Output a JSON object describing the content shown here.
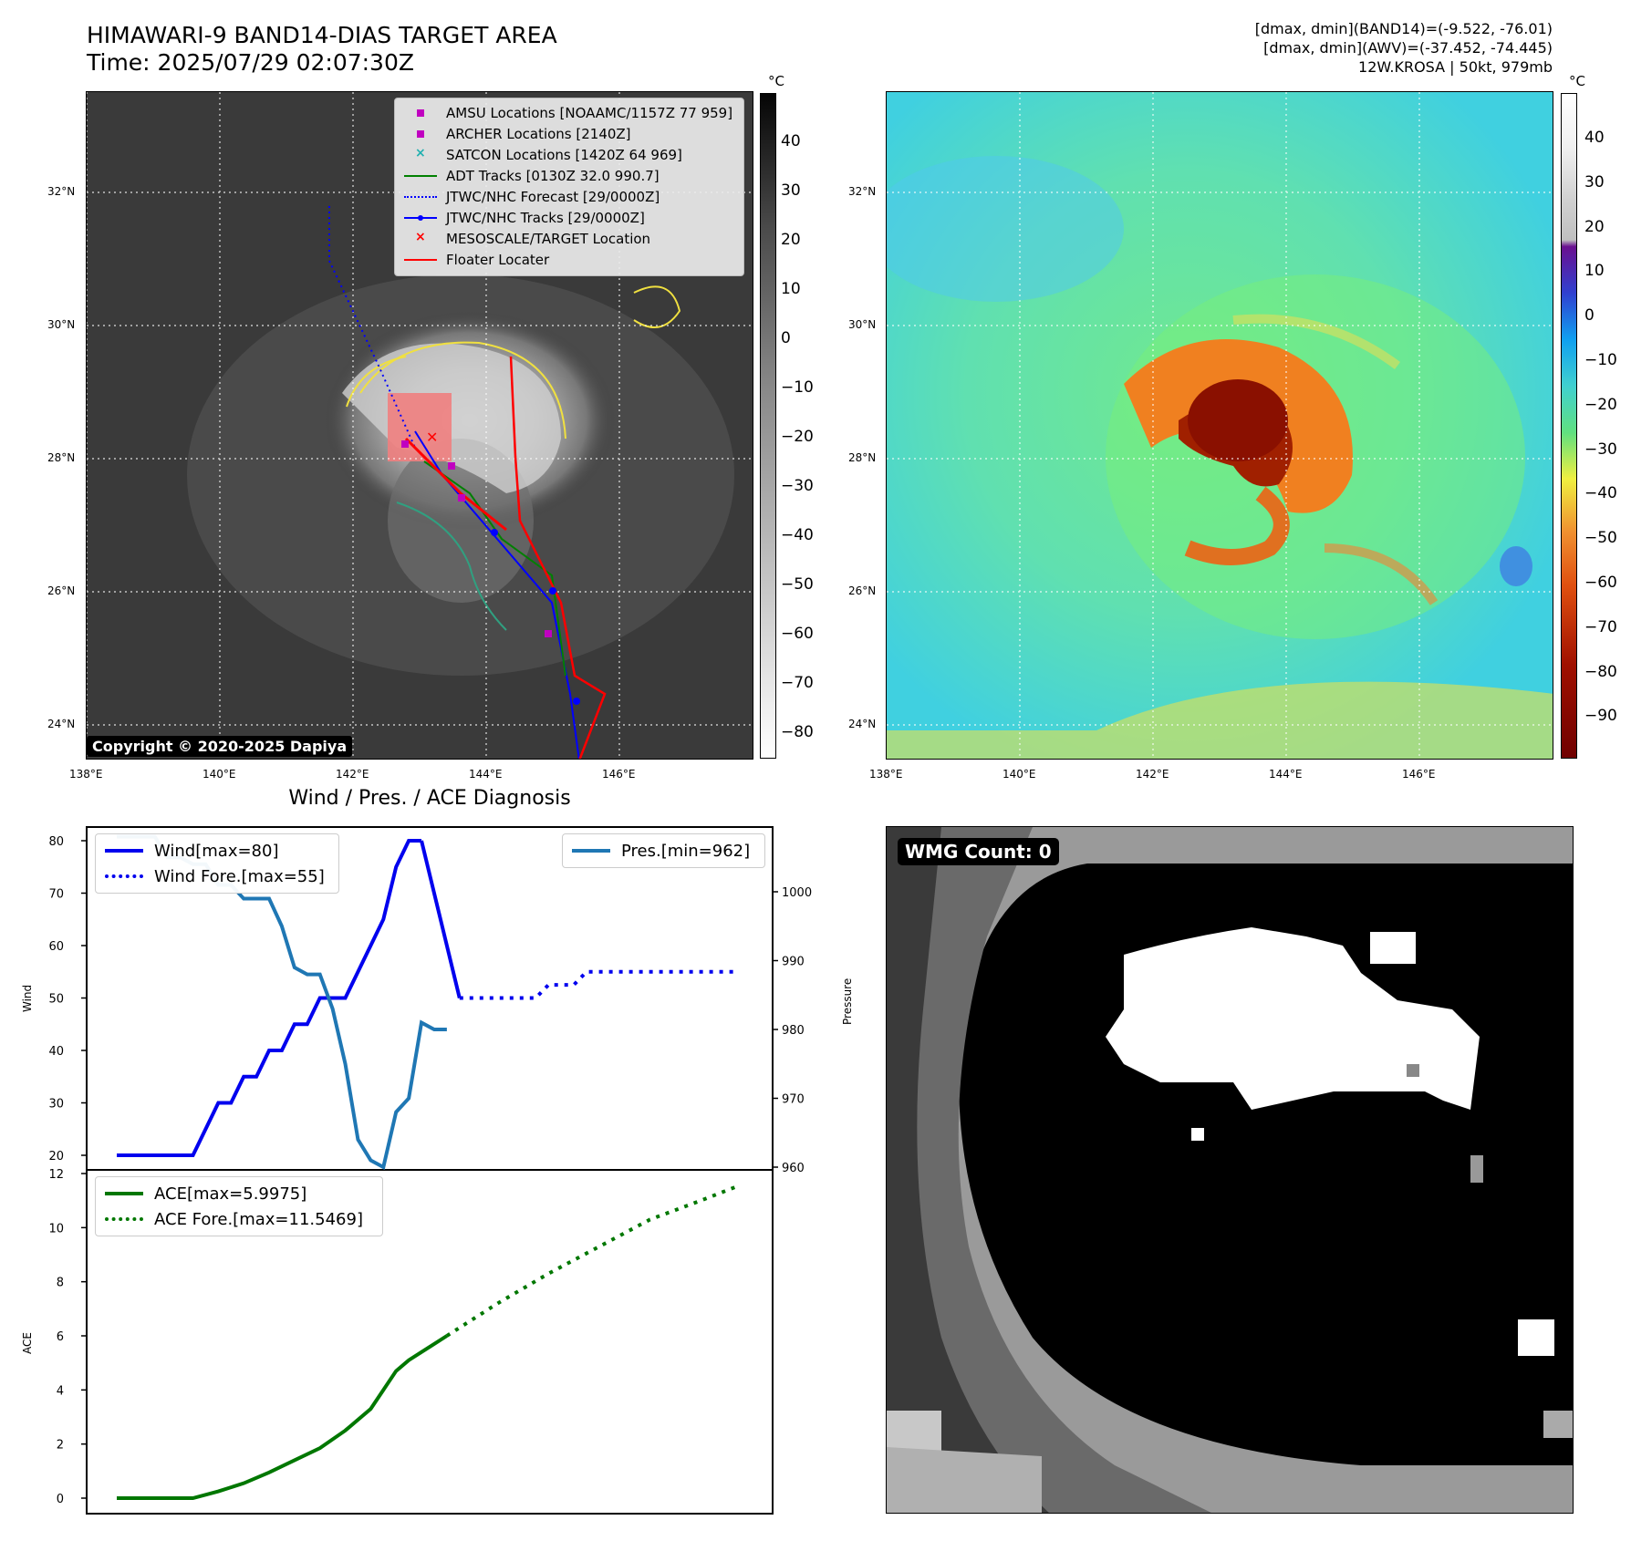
{
  "title": {
    "line1": "HIMAWARI-9 BAND14-DIAS TARGET AREA",
    "line2": "Time: 2025/07/29 02:07:30Z",
    "right1": "[dmax, dmin](BAND14)=(-9.522, -76.01)",
    "right2": "[dmax, dmin](AWV)=(-37.452, -74.445)",
    "right3": "12W.KROSA | 50kt, 979mb"
  },
  "map": {
    "lat_labels": [
      "32°N",
      "30°N",
      "28°N",
      "26°N",
      "24°N"
    ],
    "lon_labels": [
      "138°E",
      "140°E",
      "142°E",
      "144°E",
      "146°E"
    ],
    "copyright": "Copyright © 2020-2025 Dapiya",
    "cbar_unit": "°C",
    "cbar_left_ticks": [
      "40",
      "30",
      "20",
      "10",
      "0",
      "−10",
      "−20",
      "−30",
      "−40",
      "−50",
      "−60",
      "−70",
      "−80"
    ],
    "cbar_right_ticks": [
      "40",
      "30",
      "20",
      "10",
      "0",
      "−10",
      "−20",
      "−30",
      "−40",
      "−50",
      "−60",
      "−70",
      "−80",
      "−90"
    ],
    "legend": [
      {
        "label": "AMSU Locations [NOAAMC/1157Z 77 959]",
        "icon": "square-marker",
        "color": "#c000c0"
      },
      {
        "label": "ARCHER Locations [2140Z]",
        "icon": "square-marker",
        "color": "#c000c0"
      },
      {
        "label": "SATCON Locations [1420Z 64 969]",
        "icon": "x-marker",
        "color": "#20b0b0"
      },
      {
        "label": "ADT Tracks [0130Z 32.0 990.7]",
        "icon": "solid-line",
        "color": "#008000"
      },
      {
        "label": "JTWC/NHC Forecast [29/0000Z]",
        "icon": "dotted-line",
        "color": "#0000ff"
      },
      {
        "label": "JTWC/NHC Tracks [29/0000Z]",
        "icon": "line-dot",
        "color": "#0000ff"
      },
      {
        "label": "MESOSCALE/TARGET Location",
        "icon": "x-marker",
        "color": "#ff0000"
      },
      {
        "label": "Floater Locater",
        "icon": "solid-line",
        "color": "#ff0000"
      }
    ]
  },
  "diag": {
    "title": "Wind / Pres. / ACE Diagnosis",
    "wind_ylabel": "Wind",
    "pres_ylabel": "Pressure",
    "ace_ylabel": "ACE",
    "legend_wind": "Wind[max=80]",
    "legend_wind_fore": "Wind Fore.[max=55]",
    "legend_pres": "Pres.[min=962]",
    "legend_ace": "ACE[max=5.9975]",
    "legend_ace_fore": "ACE Fore.[max=11.5469]",
    "wind_ticks": [
      "80",
      "70",
      "60",
      "50",
      "40",
      "30",
      "20"
    ],
    "pres_ticks": [
      "1000",
      "990",
      "980",
      "970",
      "960"
    ],
    "ace_ticks": [
      "12",
      "10",
      "8",
      "6",
      "4",
      "2",
      "0"
    ]
  },
  "wmg": {
    "label": "WMG Count: 0"
  },
  "colors": {
    "wind": "#0000ee",
    "pressure": "#1f77b4",
    "ace": "#007700"
  },
  "chart_data": [
    {
      "type": "line",
      "title": "Wind / Pres. / ACE Diagnosis",
      "ylabel": "Wind",
      "ylim": [
        18,
        82
      ],
      "series": [
        {
          "name": "Wind[max=80]",
          "x": [
            0,
            3,
            6,
            8,
            9,
            10,
            11,
            12,
            13,
            14,
            15,
            16,
            17,
            18,
            19,
            20,
            21,
            22,
            23,
            24
          ],
          "values": [
            20,
            20,
            20,
            30,
            30,
            35,
            35,
            40,
            40,
            45,
            45,
            50,
            50,
            50,
            55,
            60,
            65,
            75,
            80,
            80
          ]
        },
        {
          "name": "Wind[max=80]",
          "x": [
            24,
            27
          ],
          "values": [
            80,
            50
          ]
        },
        {
          "name": "Wind Fore.[max=55]",
          "x": [
            27,
            33,
            34,
            35,
            36,
            37,
            38,
            42,
            46,
            47,
            49
          ],
          "values": [
            50,
            50,
            52.5,
            52.5,
            52.5,
            55,
            55,
            55,
            55,
            55,
            55
          ]
        }
      ]
    },
    {
      "type": "line",
      "ylabel": "Pressure",
      "ylim": [
        960,
        1009
      ],
      "series": [
        {
          "name": "Pres.[min=962]",
          "x": [
            0,
            3,
            4,
            5,
            6,
            7,
            8,
            9,
            10,
            11,
            12,
            13,
            14,
            15,
            16,
            17,
            18,
            19,
            20,
            21,
            22,
            23,
            24,
            25,
            26
          ],
          "values": [
            1008,
            1008,
            1005,
            1005,
            1004,
            1004,
            1001,
            1001,
            999,
            999,
            999,
            995,
            989,
            988,
            988,
            983,
            975,
            964,
            961,
            960,
            968,
            970,
            981,
            980,
            980
          ]
        }
      ]
    },
    {
      "type": "line",
      "ylabel": "ACE",
      "ylim": [
        -0.3,
        12
      ],
      "series": [
        {
          "name": "ACE[max=5.9975]",
          "x": [
            0,
            3,
            6,
            8,
            10,
            12,
            14,
            16,
            18,
            20,
            21,
            22,
            23,
            24,
            25,
            26
          ],
          "values": [
            0,
            0,
            0,
            0.25,
            0.55,
            0.95,
            1.4,
            1.85,
            2.5,
            3.3,
            4.0,
            4.7,
            5.1,
            5.4,
            5.7,
            6.0
          ]
        },
        {
          "name": "ACE Fore.[max=11.5469]",
          "x": [
            26,
            30,
            34,
            38,
            42,
            46,
            49
          ],
          "values": [
            6.0,
            7.2,
            8.3,
            9.3,
            10.3,
            11.0,
            11.55
          ]
        }
      ]
    }
  ]
}
